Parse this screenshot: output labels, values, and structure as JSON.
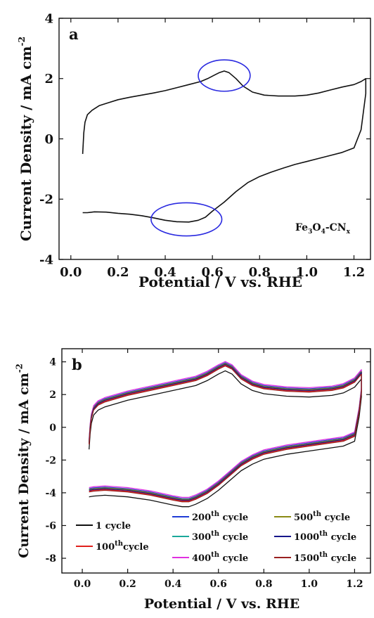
{
  "chart_data": [
    {
      "type": "line",
      "panel_label": "a",
      "xlabel": "Potential / V vs. RHE",
      "ylabel": "Current Density / mA cm",
      "ylabel_sup": "-2",
      "xlim": [
        -0.05,
        1.27
      ],
      "ylim": [
        -4,
        4
      ],
      "xticks": [
        0.0,
        0.2,
        0.4,
        0.6,
        0.8,
        1.0,
        1.2
      ],
      "xtick_labels": [
        "0.0",
        "0.2",
        "0.4",
        "0.6",
        "0.8",
        "1.0",
        "1.2"
      ],
      "yticks": [
        -4,
        -2,
        0,
        2,
        4
      ],
      "ytick_labels": [
        "-4",
        "-2",
        "0",
        "2",
        "4"
      ],
      "annotation": {
        "base": "Fe",
        "sub1": "3",
        "mid": "O",
        "sub2": "4",
        "tail": "-CN",
        "sub3": "x"
      },
      "highlight_color": "#2a2ae0",
      "highlights": [
        {
          "x": 0.65,
          "y": 2.1,
          "rx": 0.11,
          "ry": 0.52
        },
        {
          "x": 0.49,
          "y": -2.67,
          "rx": 0.15,
          "ry": 0.55
        }
      ],
      "series": [
        {
          "color": "#111111",
          "x": [
            0.05,
            0.055,
            0.06,
            0.07,
            0.09,
            0.12,
            0.16,
            0.2,
            0.25,
            0.3,
            0.35,
            0.4,
            0.45,
            0.5,
            0.55,
            0.58,
            0.61,
            0.63,
            0.65,
            0.67,
            0.7,
            0.73,
            0.77,
            0.82,
            0.88,
            0.95,
            1.0,
            1.05,
            1.1,
            1.15,
            1.2,
            1.23,
            1.25,
            1.25,
            1.23,
            1.2,
            1.15,
            1.1,
            1.05,
            1.0,
            0.95,
            0.9,
            0.85,
            0.8,
            0.75,
            0.7,
            0.65,
            0.6,
            0.57,
            0.54,
            0.5,
            0.45,
            0.4,
            0.35,
            0.3,
            0.25,
            0.2,
            0.15,
            0.1,
            0.07,
            0.05
          ],
          "y": [
            -0.5,
            0.2,
            0.55,
            0.8,
            0.95,
            1.1,
            1.2,
            1.3,
            1.38,
            1.45,
            1.52,
            1.6,
            1.7,
            1.8,
            1.9,
            2.0,
            2.12,
            2.2,
            2.25,
            2.2,
            2.0,
            1.75,
            1.55,
            1.45,
            1.42,
            1.42,
            1.45,
            1.52,
            1.62,
            1.72,
            1.8,
            1.9,
            2.0,
            1.5,
            0.3,
            -0.3,
            -0.45,
            -0.55,
            -0.65,
            -0.75,
            -0.85,
            -0.97,
            -1.1,
            -1.25,
            -1.45,
            -1.75,
            -2.1,
            -2.4,
            -2.6,
            -2.7,
            -2.76,
            -2.75,
            -2.7,
            -2.62,
            -2.55,
            -2.5,
            -2.47,
            -2.43,
            -2.42,
            -2.45,
            -2.45
          ]
        }
      ]
    },
    {
      "type": "line",
      "panel_label": "b",
      "xlabel": "Potential / V vs. RHE",
      "ylabel": "Current Density / mA cm",
      "ylabel_sup": "-2",
      "xlim": [
        -0.09,
        1.27
      ],
      "ylim": [
        -8.9,
        4.8
      ],
      "xticks": [
        0.0,
        0.2,
        0.4,
        0.6,
        0.8,
        1.0,
        1.2
      ],
      "xtick_labels": [
        "0.0",
        "0.2",
        "0.4",
        "0.6",
        "0.8",
        "1.0",
        "1.2"
      ],
      "yticks": [
        -8,
        -6,
        -4,
        -2,
        0,
        2,
        4
      ],
      "ytick_labels": [
        "-8",
        "-6",
        "-4",
        "-2",
        "0",
        "2",
        "4"
      ],
      "legend_position": "bottom",
      "base_curve": {
        "x": [
          0.03,
          0.035,
          0.04,
          0.05,
          0.07,
          0.1,
          0.15,
          0.2,
          0.3,
          0.4,
          0.5,
          0.55,
          0.6,
          0.63,
          0.66,
          0.7,
          0.75,
          0.8,
          0.9,
          1.0,
          1.1,
          1.15,
          1.2,
          1.23,
          1.23,
          1.22,
          1.2,
          1.15,
          1.1,
          1.0,
          0.9,
          0.8,
          0.75,
          0.7,
          0.65,
          0.6,
          0.55,
          0.5,
          0.47,
          0.44,
          0.4,
          0.3,
          0.2,
          0.1,
          0.05,
          0.03
        ],
        "y": [
          -1.0,
          0.0,
          0.6,
          1.1,
          1.4,
          1.6,
          1.8,
          2.0,
          2.3,
          2.6,
          2.9,
          3.2,
          3.6,
          3.8,
          3.6,
          3.0,
          2.6,
          2.4,
          2.25,
          2.2,
          2.3,
          2.45,
          2.8,
          3.3,
          2.2,
          1.0,
          -0.5,
          -0.8,
          -0.9,
          -1.1,
          -1.3,
          -1.6,
          -1.9,
          -2.3,
          -2.9,
          -3.5,
          -4.0,
          -4.35,
          -4.5,
          -4.5,
          -4.4,
          -4.1,
          -3.9,
          -3.8,
          -3.85,
          -3.9
        ]
      },
      "series": [
        {
          "name": "1 cycle",
          "label_html": "",
          "base": "1 cycle",
          "sup": "",
          "suffix": "",
          "color": "#111111",
          "dy": -0.35
        },
        {
          "name": "100th cycle",
          "base": "100",
          "sup": "th",
          "suffix": "cycle",
          "color": "#e0201c",
          "dy": 0.0
        },
        {
          "name": "200th cycle",
          "base": "200",
          "sup": "th",
          "suffix": " cycle",
          "color": "#1f3bd6",
          "dy": 0.15
        },
        {
          "name": "300th cycle",
          "base": "300",
          "sup": "th",
          "suffix": " cycle",
          "color": "#1aa89a",
          "dy": 0.08
        },
        {
          "name": "400th cycle",
          "base": "400",
          "sup": "th",
          "suffix": " cycle",
          "color": "#e030e0",
          "dy": 0.22
        },
        {
          "name": "500th cycle",
          "base": "500",
          "sup": "th",
          "suffix": " cycle",
          "color": "#8a8a14",
          "dy": 0.1
        },
        {
          "name": "1000th cycle",
          "base": "1000",
          "sup": "th",
          "suffix": " cycle",
          "color": "#16168a",
          "dy": 0.05
        },
        {
          "name": "1500th cycle",
          "base": "1500",
          "sup": "th",
          "suffix": " cycle",
          "color": "#9a2020",
          "dy": -0.05
        }
      ]
    }
  ]
}
